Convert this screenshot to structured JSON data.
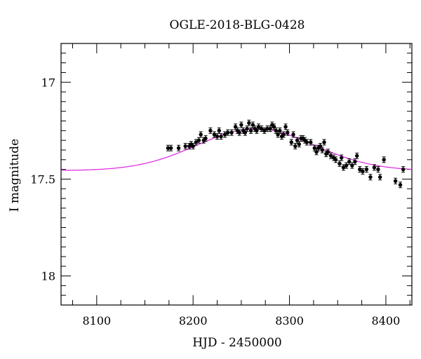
{
  "chart_data": {
    "type": "scatter",
    "title": "OGLE-2018-BLG-0428",
    "xlabel": "HJD - 2450000",
    "ylabel": "I magnitude",
    "xlim": [
      8063,
      8427
    ],
    "ylim": [
      18.15,
      16.8
    ],
    "y_inverted": true,
    "x_ticks": [
      8100,
      8200,
      8300,
      8400
    ],
    "x_tick_labels": [
      "8100",
      "8200",
      "8300",
      "8400"
    ],
    "y_ticks": [
      17,
      17.5,
      18
    ],
    "y_tick_labels": [
      "17",
      "17.5",
      "18"
    ],
    "grid": false,
    "legend": "none",
    "series": [
      {
        "kind": "points",
        "color": "#000000",
        "error_bars": true,
        "points": [
          [
            8174,
            17.34
          ],
          [
            8177,
            17.34
          ],
          [
            8185,
            17.34
          ],
          [
            8192,
            17.33
          ],
          [
            8196,
            17.33
          ],
          [
            8198,
            17.32
          ],
          [
            8200,
            17.33
          ],
          [
            8203,
            17.31
          ],
          [
            8206,
            17.3
          ],
          [
            8208,
            17.27
          ],
          [
            8211,
            17.3
          ],
          [
            8213,
            17.29
          ],
          [
            8218,
            17.25
          ],
          [
            8222,
            17.27
          ],
          [
            8225,
            17.28
          ],
          [
            8227,
            17.25
          ],
          [
            8229,
            17.28
          ],
          [
            8233,
            17.27
          ],
          [
            8236,
            17.26
          ],
          [
            8240,
            17.26
          ],
          [
            8244,
            17.23
          ],
          [
            8246,
            17.25
          ],
          [
            8248,
            17.26
          ],
          [
            8250,
            17.22
          ],
          [
            8252,
            17.25
          ],
          [
            8254,
            17.26
          ],
          [
            8256,
            17.24
          ],
          [
            8258,
            17.21
          ],
          [
            8260,
            17.25
          ],
          [
            8262,
            17.22
          ],
          [
            8264,
            17.24
          ],
          [
            8266,
            17.25
          ],
          [
            8268,
            17.23
          ],
          [
            8271,
            17.24
          ],
          [
            8274,
            17.25
          ],
          [
            8277,
            17.24
          ],
          [
            8280,
            17.24
          ],
          [
            8282,
            17.22
          ],
          [
            8284,
            17.23
          ],
          [
            8286,
            17.25
          ],
          [
            8288,
            17.27
          ],
          [
            8290,
            17.25
          ],
          [
            8292,
            17.28
          ],
          [
            8294,
            17.27
          ],
          [
            8296,
            17.23
          ],
          [
            8298,
            17.26
          ],
          [
            8302,
            17.31
          ],
          [
            8304,
            17.27
          ],
          [
            8306,
            17.33
          ],
          [
            8308,
            17.3
          ],
          [
            8310,
            17.32
          ],
          [
            8312,
            17.29
          ],
          [
            8314,
            17.29
          ],
          [
            8316,
            17.3
          ],
          [
            8318,
            17.31
          ],
          [
            8322,
            17.31
          ],
          [
            8326,
            17.34
          ],
          [
            8328,
            17.36
          ],
          [
            8330,
            17.34
          ],
          [
            8332,
            17.33
          ],
          [
            8334,
            17.35
          ],
          [
            8336,
            17.31
          ],
          [
            8338,
            17.37
          ],
          [
            8340,
            17.36
          ],
          [
            8343,
            17.38
          ],
          [
            8346,
            17.39
          ],
          [
            8348,
            17.4
          ],
          [
            8352,
            17.42
          ],
          [
            8354,
            17.39
          ],
          [
            8356,
            17.44
          ],
          [
            8359,
            17.43
          ],
          [
            8362,
            17.41
          ],
          [
            8365,
            17.43
          ],
          [
            8368,
            17.41
          ],
          [
            8370,
            17.38
          ],
          [
            8373,
            17.45
          ],
          [
            8376,
            17.46
          ],
          [
            8380,
            17.45
          ],
          [
            8384,
            17.49
          ],
          [
            8388,
            17.44
          ],
          [
            8392,
            17.45
          ],
          [
            8394,
            17.49
          ],
          [
            8398,
            17.4
          ],
          [
            8410,
            17.51
          ],
          [
            8415,
            17.53
          ],
          [
            8418,
            17.45
          ]
        ]
      },
      {
        "kind": "model",
        "color": "#e020e0",
        "t0": 8265,
        "peak_mag": 17.24,
        "base_mag": 17.456,
        "tau": 61
      }
    ]
  }
}
